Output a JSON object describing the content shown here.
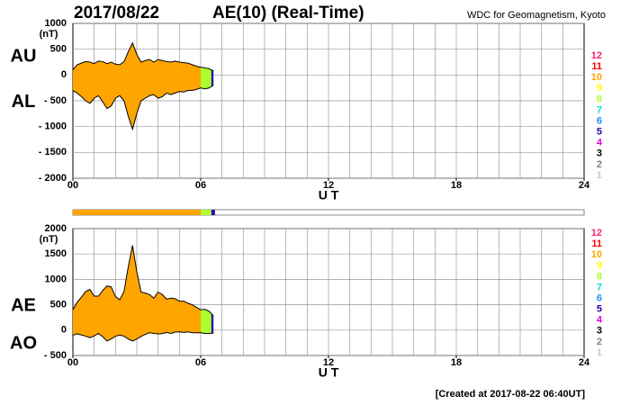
{
  "header": {
    "date": "2017/08/22",
    "title": "AE(10) (Real-Time)",
    "source": "WDC for Geomagnetism, Kyoto"
  },
  "footer": "[Created at 2017-08-22 06:40UT]",
  "stations": {
    "counts": [
      12,
      11,
      10,
      9,
      8,
      7,
      6,
      5,
      4,
      3,
      2,
      1
    ],
    "colors": [
      "#ff1e78",
      "#ff0000",
      "#ffa500",
      "#ffff00",
      "#adff2f",
      "#00e0e0",
      "#1e90ff",
      "#3000b0",
      "#e000e0",
      "#000000",
      "#808080",
      "#c8c8c8"
    ]
  },
  "coverage": [
    {
      "from": 0,
      "to": 6,
      "stations": 10
    },
    {
      "from": 6,
      "to": 6.5,
      "stations": 8
    },
    {
      "from": 6.5,
      "to": 6.67,
      "stations": 5
    }
  ],
  "chart_data": [
    {
      "type": "area",
      "y_label": "(nT)",
      "x_label": "U T",
      "grid": true,
      "xlim": [
        0,
        24
      ],
      "xticks": [
        {
          "value": 0,
          "label": "00"
        },
        {
          "value": 6,
          "label": "06"
        },
        12,
        18,
        24
      ],
      "ylim": [
        -2000,
        1000
      ],
      "yticks": [
        1000,
        500,
        0,
        {
          "value": -500,
          "label": "- 500"
        },
        {
          "value": -1000,
          "label": "- 1000"
        },
        {
          "value": -1500,
          "label": "- 1500"
        },
        {
          "value": -2000,
          "label": "- 2000"
        }
      ],
      "x": [
        0,
        0.2,
        0.4,
        0.6,
        0.8,
        1.0,
        1.2,
        1.4,
        1.6,
        1.8,
        2.0,
        2.2,
        2.4,
        2.6,
        2.8,
        3.0,
        3.2,
        3.4,
        3.6,
        3.8,
        4.0,
        4.2,
        4.4,
        4.6,
        4.8,
        5.0,
        5.2,
        5.4,
        5.6,
        5.8,
        6.0,
        6.2,
        6.4,
        6.6
      ],
      "series": [
        {
          "name": "AU",
          "values": [
            100,
            200,
            230,
            260,
            250,
            220,
            270,
            260,
            220,
            250,
            210,
            200,
            260,
            450,
            620,
            400,
            250,
            280,
            300,
            250,
            300,
            280,
            260,
            250,
            270,
            250,
            240,
            230,
            200,
            170,
            150,
            140,
            120,
            80
          ]
        },
        {
          "name": "AL",
          "values": [
            -300,
            -350,
            -420,
            -500,
            -550,
            -450,
            -400,
            -520,
            -650,
            -600,
            -450,
            -400,
            -500,
            -800,
            -1050,
            -750,
            -500,
            -450,
            -400,
            -380,
            -450,
            -420,
            -350,
            -380,
            -350,
            -320,
            -330,
            -300,
            -300,
            -280,
            -250,
            -270,
            -250,
            -200
          ]
        }
      ]
    },
    {
      "type": "area",
      "y_label": "(nT)",
      "x_label": "U T",
      "grid": true,
      "xlim": [
        0,
        24
      ],
      "xticks": [
        {
          "value": 0,
          "label": "00"
        },
        {
          "value": 6,
          "label": "06"
        },
        12,
        18,
        24
      ],
      "ylim": [
        -500,
        2000
      ],
      "yticks": [
        2000,
        1500,
        1000,
        500,
        0,
        {
          "value": -500,
          "label": "- 500"
        }
      ],
      "x": [
        0,
        0.2,
        0.4,
        0.6,
        0.8,
        1.0,
        1.2,
        1.4,
        1.6,
        1.8,
        2.0,
        2.2,
        2.4,
        2.6,
        2.8,
        3.0,
        3.2,
        3.4,
        3.6,
        3.8,
        4.0,
        4.2,
        4.4,
        4.6,
        4.8,
        5.0,
        5.2,
        5.4,
        5.6,
        5.8,
        6.0,
        6.2,
        6.4,
        6.6
      ],
      "series": [
        {
          "name": "AE",
          "values": [
            400,
            550,
            650,
            760,
            800,
            670,
            670,
            780,
            870,
            850,
            660,
            600,
            760,
            1250,
            1670,
            1150,
            750,
            730,
            700,
            630,
            750,
            700,
            610,
            630,
            620,
            570,
            570,
            530,
            500,
            450,
            400,
            410,
            370,
            280
          ]
        },
        {
          "name": "AO",
          "values": [
            -100,
            -75,
            -95,
            -120,
            -150,
            -115,
            -65,
            -130,
            -215,
            -175,
            -120,
            -100,
            -120,
            -175,
            -215,
            -175,
            -125,
            -85,
            -50,
            -65,
            -75,
            -70,
            -45,
            -65,
            -40,
            -35,
            -45,
            -35,
            -50,
            -55,
            -50,
            -65,
            -65,
            -60
          ]
        }
      ]
    }
  ]
}
